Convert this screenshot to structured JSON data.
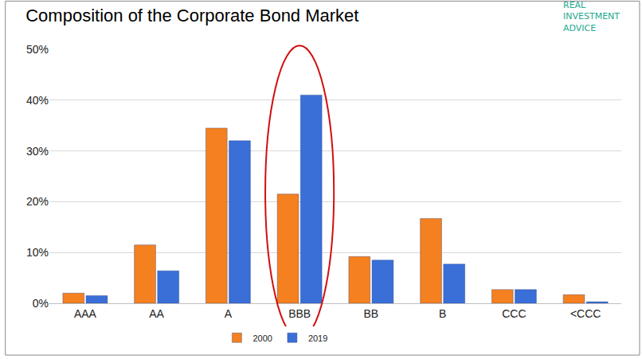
{
  "chart_data": {
    "type": "bar",
    "title": "Composition of the Corporate Bond Market",
    "annotations": [
      {
        "text": "REAL INVESTMENT ADVICE"
      }
    ],
    "categories": [
      "AAA",
      "AA",
      "A",
      "BBB",
      "BB",
      "B",
      "CCC",
      "<CCC"
    ],
    "series": [
      {
        "name": "2000",
        "color": "#f5801f",
        "values": [
          2.0,
          11.5,
          34.5,
          21.5,
          9.2,
          16.7,
          2.7,
          1.7
        ]
      },
      {
        "name": "2019",
        "color": "#3a6fd8",
        "values": [
          1.5,
          6.4,
          32.0,
          41.0,
          8.5,
          7.7,
          2.7,
          0.3
        ]
      }
    ],
    "ylim": [
      0,
      50
    ],
    "yticks": [
      {
        "value": 0,
        "label": "0%"
      },
      {
        "value": 10,
        "label": "10%"
      },
      {
        "value": 20,
        "label": "20%"
      },
      {
        "value": 30,
        "label": "30%"
      },
      {
        "value": 40,
        "label": "40%"
      },
      {
        "value": 50,
        "label": "50%"
      }
    ],
    "grid": true,
    "legend": "bottom"
  }
}
